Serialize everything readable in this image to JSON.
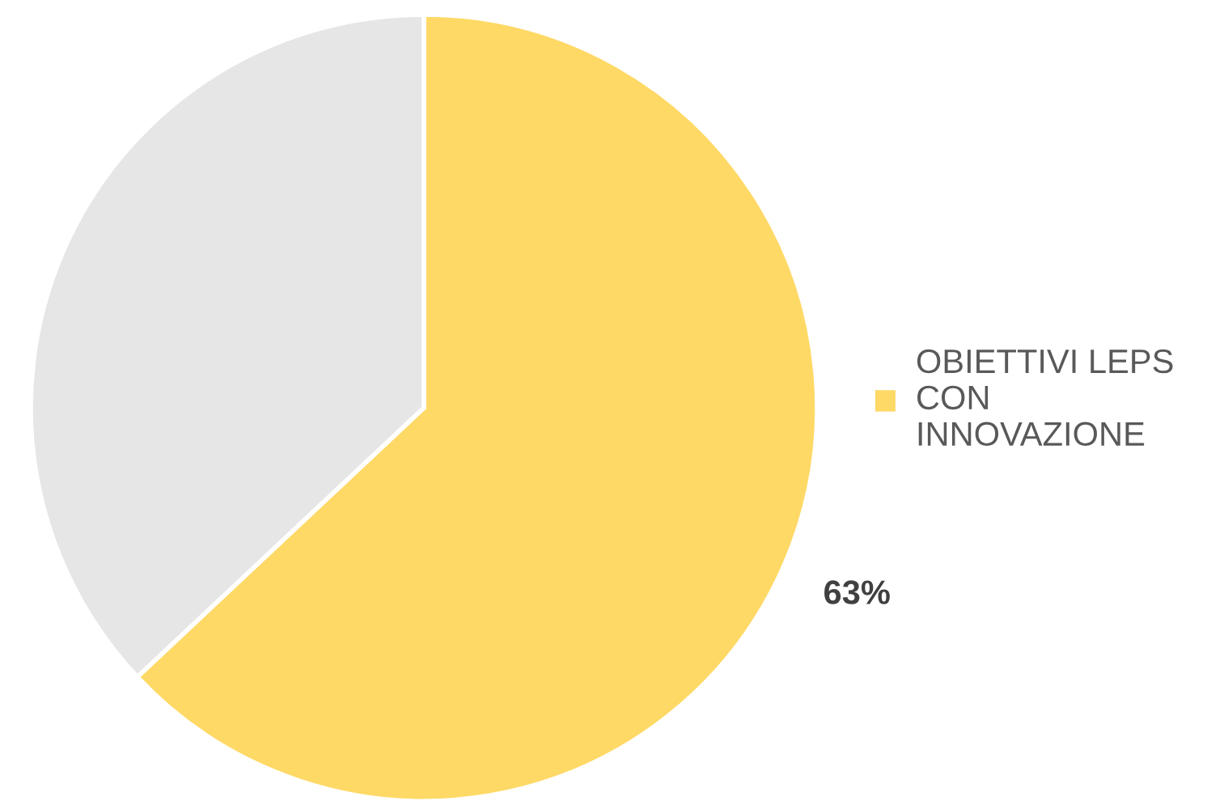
{
  "chart_data": {
    "type": "pie",
    "categories": [
      "OBIETTIVI LEPS\nCON\nINNOVAZIONE",
      null
    ],
    "values": [
      63,
      37
    ],
    "colors": [
      "#fed966",
      "#e7e6e6"
    ],
    "value_labels": [
      "63%",
      null
    ],
    "legend": "right"
  }
}
